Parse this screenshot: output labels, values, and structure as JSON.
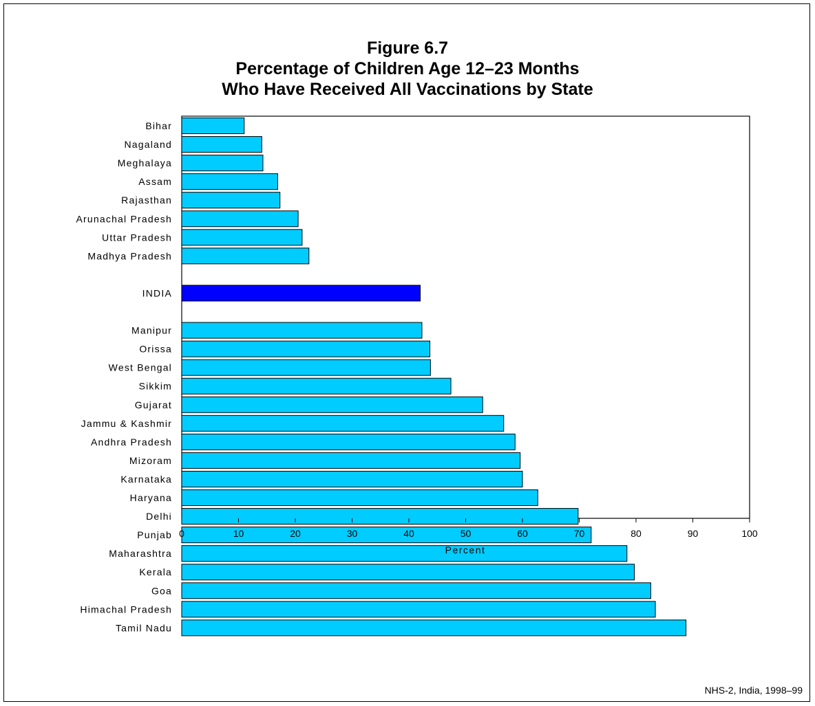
{
  "title_lines": [
    "Figure 6.7",
    "Percentage of Children Age 12–23 Months",
    "Who Have Received All Vaccinations by State"
  ],
  "source": "NHS-2, India, 1998–99",
  "colors": {
    "state_bar": "#00ccff",
    "india_bar": "#0000ff",
    "outline": "#000000"
  },
  "chart_data": {
    "type": "bar",
    "orientation": "horizontal",
    "title": "Figure 6.7 Percentage of Children Age 12–23 Months Who Have Received All Vaccinations by State",
    "xlabel": "Percent",
    "ylabel": "",
    "xlim": [
      0,
      100
    ],
    "x_ticks": [
      0,
      10,
      20,
      30,
      40,
      50,
      60,
      70,
      80,
      90,
      100
    ],
    "grid": false,
    "legend": "none",
    "categories": [
      "Bihar",
      "Nagaland",
      "Meghalaya",
      "Assam",
      "Rajasthan",
      "Arunachal Pradesh",
      "Uttar Pradesh",
      "Madhya Pradesh",
      "INDIA",
      "Manipur",
      "Orissa",
      "West Bengal",
      "Sikkim",
      "Gujarat",
      "Jammu & Kashmir",
      "Andhra Pradesh",
      "Mizoram",
      "Karnataka",
      "Haryana",
      "Delhi",
      "Punjab",
      "Maharashtra",
      "Kerala",
      "Goa",
      "Himachal Pradesh",
      "Tamil Nadu"
    ],
    "values": [
      11.0,
      14.1,
      14.3,
      16.9,
      17.3,
      20.5,
      21.2,
      22.4,
      42.0,
      42.3,
      43.7,
      43.8,
      47.4,
      53.0,
      56.7,
      58.7,
      59.6,
      60.0,
      62.7,
      69.8,
      72.1,
      78.4,
      79.7,
      82.6,
      83.4,
      88.8
    ],
    "highlight": [
      "INDIA"
    ]
  }
}
